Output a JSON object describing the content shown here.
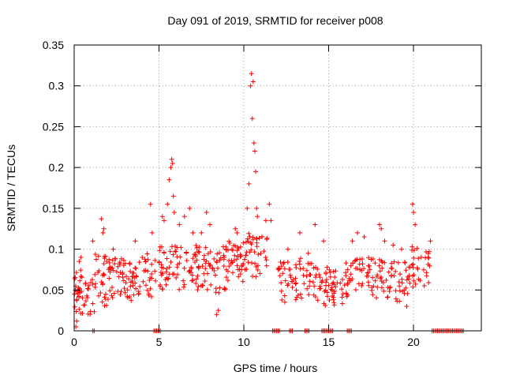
{
  "chart_data": {
    "type": "scatter",
    "title": "Day 091 of 2019, SRMTID for receiver p008",
    "xlabel": "GPS time / hours",
    "ylabel": "SRMTID / TECUs",
    "xlim": [
      0,
      24
    ],
    "ylim": [
      0,
      0.35
    ],
    "xticks": [
      "0",
      "5",
      "10",
      "15",
      "20"
    ],
    "yticks": [
      "0",
      "0.05",
      "0.1",
      "0.15",
      "0.2",
      "0.25",
      "0.3",
      "0.35"
    ],
    "grid": true,
    "marker": "+",
    "color": "#ff0000",
    "series": [
      {
        "name": "SRMTID",
        "bands": [
          {
            "x": [
              0.0,
              0.5
            ],
            "y": [
              0.02,
              0.075
            ],
            "n": 28
          },
          {
            "x": [
              0.5,
              1.2
            ],
            "y": [
              0.02,
              0.065
            ],
            "n": 18
          },
          {
            "x": [
              1.2,
              2.0
            ],
            "y": [
              0.03,
              0.095
            ],
            "n": 28
          },
          {
            "x": [
              2.0,
              3.0
            ],
            "y": [
              0.04,
              0.09
            ],
            "n": 38
          },
          {
            "x": [
              3.0,
              4.0
            ],
            "y": [
              0.035,
              0.085
            ],
            "n": 34
          },
          {
            "x": [
              4.0,
              4.8
            ],
            "y": [
              0.04,
              0.095
            ],
            "n": 24
          },
          {
            "x": [
              5.0,
              6.0
            ],
            "y": [
              0.05,
              0.105
            ],
            "n": 36
          },
          {
            "x": [
              6.0,
              7.5
            ],
            "y": [
              0.05,
              0.105
            ],
            "n": 48
          },
          {
            "x": [
              7.5,
              9.0
            ],
            "y": [
              0.045,
              0.105
            ],
            "n": 48
          },
          {
            "x": [
              9.0,
              10.0
            ],
            "y": [
              0.06,
              0.11
            ],
            "n": 36
          },
          {
            "x": [
              10.0,
              11.5
            ],
            "y": [
              0.065,
              0.12
            ],
            "n": 42
          },
          {
            "x": [
              12.0,
              13.0
            ],
            "y": [
              0.035,
              0.085
            ],
            "n": 28
          },
          {
            "x": [
              13.0,
              14.0
            ],
            "y": [
              0.035,
              0.09
            ],
            "n": 30
          },
          {
            "x": [
              14.0,
              15.0
            ],
            "y": [
              0.03,
              0.08
            ],
            "n": 30
          },
          {
            "x": [
              15.0,
              16.0
            ],
            "y": [
              0.03,
              0.075
            ],
            "n": 30
          },
          {
            "x": [
              16.0,
              17.5
            ],
            "y": [
              0.04,
              0.09
            ],
            "n": 44
          },
          {
            "x": [
              17.5,
              18.5
            ],
            "y": [
              0.04,
              0.09
            ],
            "n": 30
          },
          {
            "x": [
              18.5,
              19.9
            ],
            "y": [
              0.035,
              0.085
            ],
            "n": 38
          },
          {
            "x": [
              19.9,
              21.0
            ],
            "y": [
              0.05,
              0.105
            ],
            "n": 32
          }
        ],
        "points": [
          [
            0.1,
            0.005
          ],
          [
            0.15,
            0.012
          ],
          [
            0.3,
            0.085
          ],
          [
            0.4,
            0.09
          ],
          [
            1.1,
            0.11
          ],
          [
            1.6,
            0.137
          ],
          [
            1.7,
            0.12
          ],
          [
            1.75,
            0.125
          ],
          [
            2.3,
            0.1
          ],
          [
            3.6,
            0.11
          ],
          [
            4.5,
            0.155
          ],
          [
            4.6,
            0.12
          ],
          [
            5.2,
            0.14
          ],
          [
            5.3,
            0.135
          ],
          [
            5.5,
            0.155
          ],
          [
            5.6,
            0.185
          ],
          [
            5.7,
            0.2
          ],
          [
            5.75,
            0.21
          ],
          [
            5.8,
            0.205
          ],
          [
            5.85,
            0.165
          ],
          [
            5.9,
            0.145
          ],
          [
            6.2,
            0.13
          ],
          [
            6.5,
            0.14
          ],
          [
            6.8,
            0.15
          ],
          [
            7.0,
            0.12
          ],
          [
            7.5,
            0.12
          ],
          [
            7.8,
            0.145
          ],
          [
            8.0,
            0.13
          ],
          [
            8.5,
            0.025
          ],
          [
            8.4,
            0.02
          ],
          [
            9.3,
            0.1
          ],
          [
            9.5,
            0.125
          ],
          [
            9.6,
            0.12
          ],
          [
            10.2,
            0.15
          ],
          [
            10.3,
            0.18
          ],
          [
            10.4,
            0.3
          ],
          [
            10.45,
            0.315
          ],
          [
            10.5,
            0.26
          ],
          [
            10.55,
            0.305
          ],
          [
            10.6,
            0.23
          ],
          [
            10.65,
            0.22
          ],
          [
            10.7,
            0.195
          ],
          [
            10.75,
            0.15
          ],
          [
            10.8,
            0.14
          ],
          [
            11.3,
            0.135
          ],
          [
            11.5,
            0.155
          ],
          [
            11.6,
            0.135
          ],
          [
            12.6,
            0.1
          ],
          [
            13.3,
            0.12
          ],
          [
            13.8,
            0.095
          ],
          [
            14.2,
            0.13
          ],
          [
            14.7,
            0.11
          ],
          [
            16.4,
            0.11
          ],
          [
            16.7,
            0.12
          ],
          [
            17.1,
            0.115
          ],
          [
            18.0,
            0.13
          ],
          [
            18.1,
            0.125
          ],
          [
            18.3,
            0.11
          ],
          [
            18.8,
            0.105
          ],
          [
            19.3,
            0.1
          ],
          [
            19.95,
            0.155
          ],
          [
            20.0,
            0.145
          ],
          [
            20.1,
            0.13
          ],
          [
            19.6,
            0.03
          ],
          [
            21.0,
            0.11
          ]
        ],
        "zero_runs": [
          [
            1.1,
            1.2
          ],
          [
            4.7,
            4.95
          ],
          [
            5.0,
            5.1
          ],
          [
            11.7,
            12.1
          ],
          [
            12.7,
            12.9
          ],
          [
            13.6,
            13.9
          ],
          [
            14.6,
            15.3
          ],
          [
            16.1,
            16.4
          ],
          [
            21.1,
            23.0
          ]
        ]
      }
    ]
  }
}
